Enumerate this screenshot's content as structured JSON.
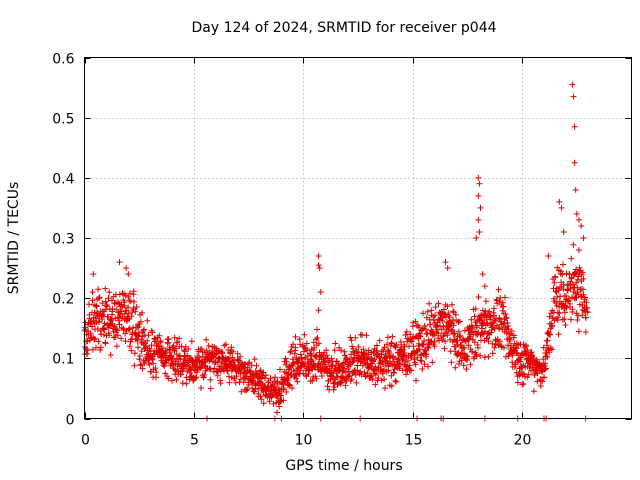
{
  "chart_data": {
    "type": "scatter",
    "title": "Day 124 of 2024, SRMTID for receiver p044",
    "xlabel": "GPS time / hours",
    "ylabel": "SRMTID / TECUs",
    "xlim": [
      0,
      25
    ],
    "ylim": [
      0,
      0.6
    ],
    "x_ticks": [
      0,
      5,
      10,
      15,
      20
    ],
    "x_tick_labels": [
      "0",
      "5",
      "10",
      "15",
      "20"
    ],
    "y_ticks": [
      0,
      0.1,
      0.2,
      0.3,
      0.4,
      0.5,
      0.6
    ],
    "y_tick_labels": [
      "0",
      "0.1",
      "0.2",
      "0.3",
      "0.4",
      "0.5",
      "0.6"
    ],
    "grid": true,
    "marker": "+",
    "marker_color": "#e00000",
    "series_shape": [
      {
        "x": 0.0,
        "y": 0.13,
        "spread": 0.04
      },
      {
        "x": 0.5,
        "y": 0.17,
        "spread": 0.05
      },
      {
        "x": 1.0,
        "y": 0.16,
        "spread": 0.05
      },
      {
        "x": 1.7,
        "y": 0.18,
        "spread": 0.06
      },
      {
        "x": 2.2,
        "y": 0.15,
        "spread": 0.06
      },
      {
        "x": 3.0,
        "y": 0.11,
        "spread": 0.04
      },
      {
        "x": 4.0,
        "y": 0.1,
        "spread": 0.035
      },
      {
        "x": 5.0,
        "y": 0.09,
        "spread": 0.035
      },
      {
        "x": 6.0,
        "y": 0.1,
        "spread": 0.035
      },
      {
        "x": 7.0,
        "y": 0.08,
        "spread": 0.03
      },
      {
        "x": 8.0,
        "y": 0.06,
        "spread": 0.03
      },
      {
        "x": 8.8,
        "y": 0.04,
        "spread": 0.025
      },
      {
        "x": 9.5,
        "y": 0.09,
        "spread": 0.04
      },
      {
        "x": 10.5,
        "y": 0.1,
        "spread": 0.04
      },
      {
        "x": 11.5,
        "y": 0.08,
        "spread": 0.035
      },
      {
        "x": 12.5,
        "y": 0.1,
        "spread": 0.04
      },
      {
        "x": 13.5,
        "y": 0.09,
        "spread": 0.04
      },
      {
        "x": 14.5,
        "y": 0.1,
        "spread": 0.04
      },
      {
        "x": 15.5,
        "y": 0.13,
        "spread": 0.05
      },
      {
        "x": 16.5,
        "y": 0.16,
        "spread": 0.05
      },
      {
        "x": 17.3,
        "y": 0.11,
        "spread": 0.04
      },
      {
        "x": 18.0,
        "y": 0.15,
        "spread": 0.05
      },
      {
        "x": 19.0,
        "y": 0.16,
        "spread": 0.05
      },
      {
        "x": 19.8,
        "y": 0.1,
        "spread": 0.04
      },
      {
        "x": 20.5,
        "y": 0.09,
        "spread": 0.035
      },
      {
        "x": 21.0,
        "y": 0.08,
        "spread": 0.03
      },
      {
        "x": 21.5,
        "y": 0.2,
        "spread": 0.06
      },
      {
        "x": 22.0,
        "y": 0.21,
        "spread": 0.07
      },
      {
        "x": 22.6,
        "y": 0.22,
        "spread": 0.07
      },
      {
        "x": 23.0,
        "y": 0.17,
        "spread": 0.03
      }
    ],
    "notable_points": [
      {
        "x": 10.7,
        "y": 0.27
      },
      {
        "x": 10.7,
        "y": 0.255
      },
      {
        "x": 10.75,
        "y": 0.25
      },
      {
        "x": 10.8,
        "y": 0.21
      },
      {
        "x": 10.7,
        "y": 0.18
      },
      {
        "x": 18.0,
        "y": 0.4
      },
      {
        "x": 18.05,
        "y": 0.39
      },
      {
        "x": 18.0,
        "y": 0.37
      },
      {
        "x": 18.1,
        "y": 0.35
      },
      {
        "x": 18.0,
        "y": 0.33
      },
      {
        "x": 18.05,
        "y": 0.31
      },
      {
        "x": 17.9,
        "y": 0.3
      },
      {
        "x": 18.2,
        "y": 0.24
      },
      {
        "x": 18.3,
        "y": 0.22
      },
      {
        "x": 16.5,
        "y": 0.26
      },
      {
        "x": 16.6,
        "y": 0.25
      },
      {
        "x": 1.6,
        "y": 0.26
      },
      {
        "x": 1.9,
        "y": 0.25
      },
      {
        "x": 2.0,
        "y": 0.24
      },
      {
        "x": 0.4,
        "y": 0.24
      },
      {
        "x": 22.3,
        "y": 0.555
      },
      {
        "x": 22.35,
        "y": 0.535
      },
      {
        "x": 22.4,
        "y": 0.485
      },
      {
        "x": 22.4,
        "y": 0.425
      },
      {
        "x": 22.45,
        "y": 0.38
      },
      {
        "x": 22.5,
        "y": 0.34
      },
      {
        "x": 21.7,
        "y": 0.36
      },
      {
        "x": 21.8,
        "y": 0.35
      },
      {
        "x": 21.9,
        "y": 0.31
      },
      {
        "x": 22.6,
        "y": 0.33
      },
      {
        "x": 22.7,
        "y": 0.32
      },
      {
        "x": 22.8,
        "y": 0.3
      },
      {
        "x": 22.6,
        "y": 0.28
      },
      {
        "x": 21.2,
        "y": 0.27
      },
      {
        "x": 8.8,
        "y": 0.01
      },
      {
        "x": 8.9,
        "y": 0.02
      },
      {
        "x": 9.0,
        "y": 0.03
      }
    ],
    "zero_points_x": [
      5.6,
      8.7,
      9.0,
      10.8,
      12.6,
      15.2,
      16.3,
      16.4,
      18.3,
      19.8,
      21.0,
      21.1,
      22.9
    ]
  }
}
